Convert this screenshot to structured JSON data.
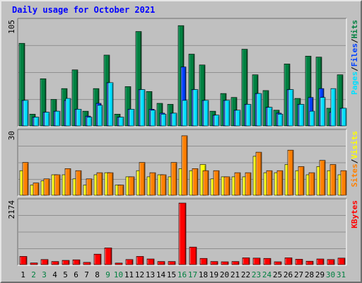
{
  "colors": {
    "background": "#c0c0c0",
    "title": "#0000ff",
    "hits": "#008040",
    "files": "#0040ff",
    "pages": "#00e0ff",
    "visits": "#ffff00",
    "sites": "#ff8000",
    "kbytes": "#ff0000",
    "weekend_day_label": "#008040",
    "weekday_label": "#000000"
  },
  "chart_data": {
    "type": "bar",
    "title": "Daily usage for October 2021",
    "categories": [
      "1",
      "2",
      "3",
      "4",
      "5",
      "6",
      "7",
      "8",
      "9",
      "10",
      "11",
      "12",
      "13",
      "14",
      "15",
      "16",
      "17",
      "18",
      "19",
      "20",
      "21",
      "22",
      "23",
      "24",
      "25",
      "26",
      "27",
      "28",
      "29",
      "30",
      "31"
    ],
    "weekend_days": [
      "2",
      "3",
      "9",
      "10",
      "16",
      "17",
      "23",
      "24",
      "30",
      "31"
    ],
    "panels": [
      {
        "id": "requests",
        "ymax_label": "105",
        "ylim": [
          0,
          105
        ],
        "legend": [
          "Pages",
          "/",
          "Files",
          "/",
          "Hits"
        ],
        "series": [
          {
            "name": "Hits",
            "color": "#008040",
            "values": [
              84,
              12,
              48,
              27,
              38,
              57,
              15,
              38,
              72,
              12,
              40,
              96,
              35,
              23,
              22,
              102,
              73,
              62,
              15,
              33,
              29,
              78,
              52,
              36,
              16,
              63,
              28,
              71,
              70,
              18,
              52
            ]
          },
          {
            "name": "Files",
            "color": "#0040ff",
            "values": [
              26,
              9,
              14,
              15,
              26,
              17,
              10,
              23,
              44,
              9,
              17,
              37,
              17,
              13,
              13,
              60,
              37,
              26,
              11,
              26,
              16,
              22,
              33,
              19,
              13,
              37,
              22,
              29,
              38,
              14,
              18
            ]
          },
          {
            "name": "Pages",
            "color": "#00e0ff",
            "values": [
              26,
              9,
              14,
              15,
              28,
              17,
              9,
              21,
              44,
              9,
              17,
              37,
              16,
              12,
              13,
              26,
              37,
              26,
              11,
              26,
              16,
              22,
              33,
              19,
              12,
              37,
              22,
              15,
              29,
              38,
              18
            ]
          }
        ]
      },
      {
        "id": "visitors",
        "ymax_label": "30",
        "ylim": [
          0,
          30
        ],
        "legend": [
          "Sites",
          "/",
          "Visits"
        ],
        "series": [
          {
            "name": "Visits",
            "color": "#ffff00",
            "values": [
              12,
              5,
              7,
              10,
              10,
              8,
              5,
              10,
              11,
              5,
              9,
              12,
              9,
              10,
              9,
              13,
              12,
              15,
              8,
              9,
              9,
              9,
              19,
              11,
              11,
              15,
              12,
              10,
              14,
              12,
              10
            ]
          },
          {
            "name": "Sites",
            "color": "#ff8000",
            "values": [
              16,
              6,
              8,
              10,
              13,
              12,
              8,
              11,
              11,
              5,
              9,
              16,
              11,
              10,
              16,
              29,
              13,
              12,
              12,
              9,
              11,
              11,
              21,
              12,
              12,
              22,
              14,
              11,
              17,
              15,
              12
            ]
          }
        ]
      },
      {
        "id": "traffic",
        "ymax_label": "2174",
        "ylim": [
          0,
          2174
        ],
        "legend": [
          "KBytes"
        ],
        "series": [
          {
            "name": "KBytes",
            "color": "#ff0000",
            "values": [
              290,
              60,
              180,
              110,
              150,
              170,
              80,
              370,
              590,
              55,
              180,
              290,
              200,
              110,
              110,
              2174,
              620,
              220,
              110,
              100,
              110,
              240,
              230,
              220,
              100,
              240,
              190,
              120,
              200,
              180,
              230
            ]
          }
        ]
      }
    ]
  }
}
